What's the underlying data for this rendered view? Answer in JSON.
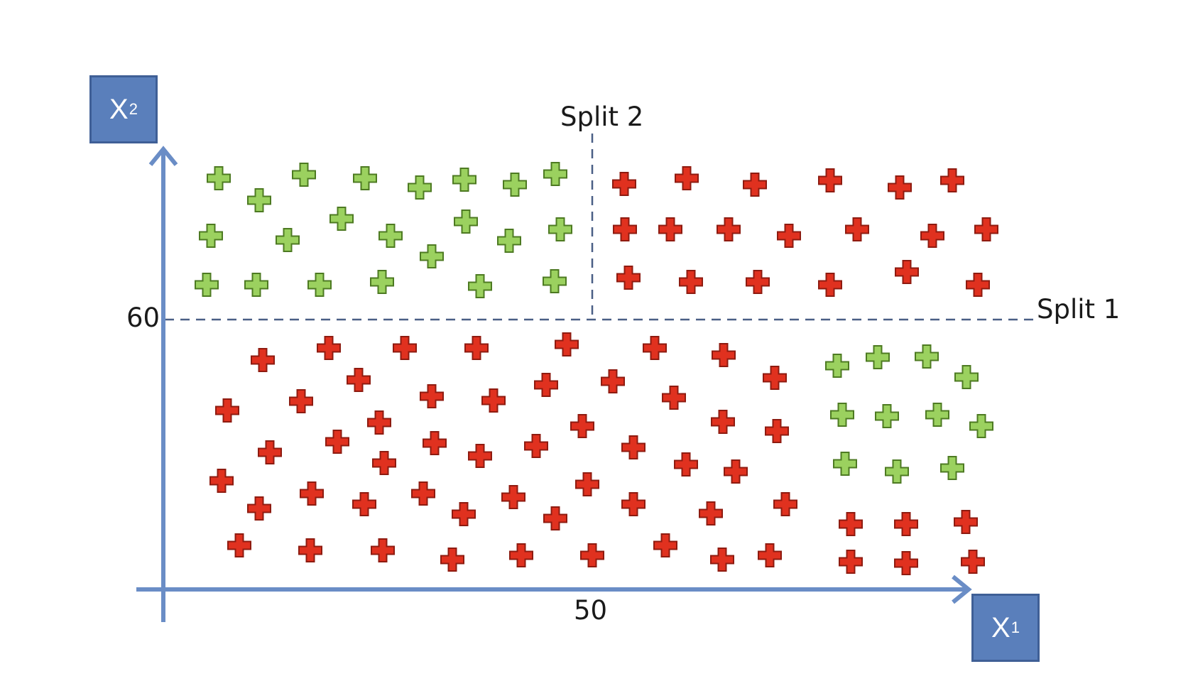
{
  "axes": {
    "x_box": {
      "main": "X",
      "sub": "1"
    },
    "y_box": {
      "main": "X",
      "sub": "2"
    },
    "x_tick_label": "50",
    "y_tick_label": "60"
  },
  "splits": {
    "split1_label": "Split 1",
    "split2_label": "Split 2"
  },
  "colors": {
    "axis": "#6a8dc6",
    "box": "#5a7fbb",
    "green_marker": "#9bd15f",
    "red_marker": "#e0311f",
    "dashed_line": "#4a5f86"
  },
  "points": {
    "green": [
      [
        308,
        251
      ],
      [
        365,
        282
      ],
      [
        428,
        246
      ],
      [
        514,
        251
      ],
      [
        591,
        264
      ],
      [
        654,
        253
      ],
      [
        725,
        260
      ],
      [
        782,
        245
      ],
      [
        297,
        332
      ],
      [
        405,
        338
      ],
      [
        481,
        308
      ],
      [
        550,
        332
      ],
      [
        608,
        361
      ],
      [
        656,
        312
      ],
      [
        717,
        339
      ],
      [
        789,
        323
      ],
      [
        291,
        401
      ],
      [
        361,
        401
      ],
      [
        450,
        401
      ],
      [
        538,
        397
      ],
      [
        676,
        403
      ],
      [
        781,
        396
      ],
      [
        1179,
        515
      ],
      [
        1236,
        503
      ],
      [
        1305,
        502
      ],
      [
        1361,
        531
      ],
      [
        1186,
        584
      ],
      [
        1249,
        586
      ],
      [
        1320,
        584
      ],
      [
        1382,
        600
      ],
      [
        1190,
        653
      ],
      [
        1263,
        664
      ],
      [
        1341,
        659
      ]
    ],
    "red": [
      [
        879,
        259
      ],
      [
        967,
        251
      ],
      [
        1063,
        260
      ],
      [
        1169,
        254
      ],
      [
        1267,
        264
      ],
      [
        1341,
        254
      ],
      [
        880,
        323
      ],
      [
        944,
        323
      ],
      [
        1026,
        323
      ],
      [
        1111,
        332
      ],
      [
        1207,
        323
      ],
      [
        1313,
        332
      ],
      [
        1389,
        323
      ],
      [
        885,
        391
      ],
      [
        973,
        397
      ],
      [
        1067,
        397
      ],
      [
        1169,
        401
      ],
      [
        1277,
        383
      ],
      [
        1377,
        401
      ],
      [
        370,
        507
      ],
      [
        463,
        490
      ],
      [
        570,
        490
      ],
      [
        671,
        490
      ],
      [
        798,
        485
      ],
      [
        922,
        490
      ],
      [
        1019,
        500
      ],
      [
        1091,
        532
      ],
      [
        505,
        535
      ],
      [
        424,
        565
      ],
      [
        608,
        558
      ],
      [
        695,
        564
      ],
      [
        769,
        542
      ],
      [
        863,
        537
      ],
      [
        949,
        560
      ],
      [
        320,
        578
      ],
      [
        534,
        595
      ],
      [
        1018,
        594
      ],
      [
        1094,
        607
      ],
      [
        380,
        637
      ],
      [
        475,
        622
      ],
      [
        612,
        624
      ],
      [
        676,
        642
      ],
      [
        755,
        628
      ],
      [
        820,
        600
      ],
      [
        892,
        630
      ],
      [
        966,
        654
      ],
      [
        1036,
        664
      ],
      [
        312,
        677
      ],
      [
        541,
        652
      ],
      [
        827,
        682
      ],
      [
        439,
        695
      ],
      [
        513,
        710
      ],
      [
        596,
        695
      ],
      [
        723,
        700
      ],
      [
        892,
        710
      ],
      [
        1001,
        723
      ],
      [
        1106,
        710
      ],
      [
        365,
        716
      ],
      [
        653,
        724
      ],
      [
        782,
        730
      ],
      [
        337,
        768
      ],
      [
        437,
        775
      ],
      [
        539,
        775
      ],
      [
        637,
        788
      ],
      [
        734,
        782
      ],
      [
        834,
        782
      ],
      [
        937,
        768
      ],
      [
        1017,
        788
      ],
      [
        1084,
        782
      ],
      [
        1198,
        738
      ],
      [
        1276,
        738
      ],
      [
        1360,
        735
      ],
      [
        1198,
        791
      ],
      [
        1276,
        793
      ],
      [
        1370,
        791
      ]
    ]
  }
}
